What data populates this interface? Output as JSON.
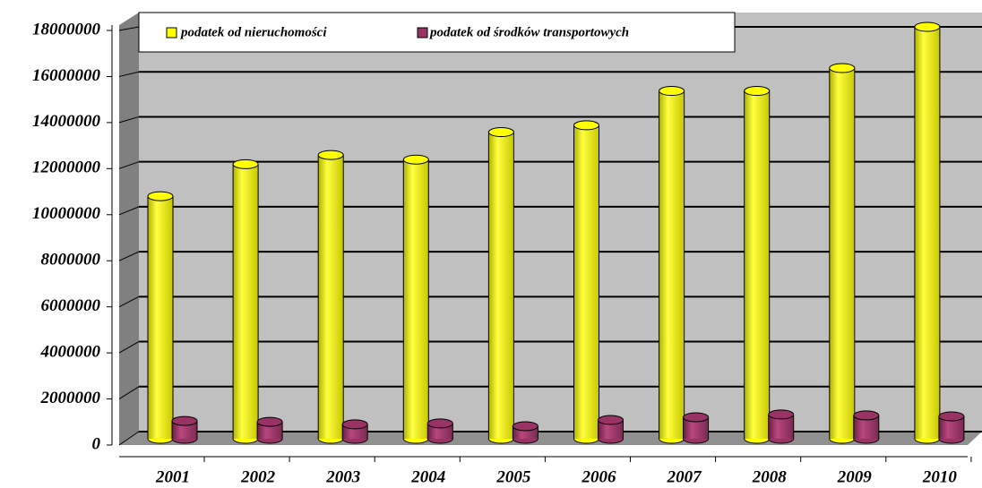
{
  "chart_data": {
    "type": "bar3d",
    "categories": [
      "2001",
      "2002",
      "2003",
      "2004",
      "2005",
      "2006",
      "2007",
      "2008",
      "2009",
      "2010"
    ],
    "series": [
      {
        "name": "podatek od nieruchomości",
        "color": "#ffff00",
        "values": [
          10600000,
          12000000,
          12400000,
          12200000,
          13400000,
          13700000,
          15200000,
          15200000,
          16200000,
          18000000
        ]
      },
      {
        "name": "podatek od środków transportowych",
        "color": "#993366",
        "values": [
          780000,
          740000,
          630000,
          670000,
          550000,
          820000,
          940000,
          1060000,
          1020000,
          980000
        ]
      }
    ],
    "ylim": [
      0,
      18000000
    ],
    "yticks": [
      0,
      2000000,
      4000000,
      6000000,
      8000000,
      10000000,
      12000000,
      14000000,
      16000000,
      18000000
    ],
    "grid": true,
    "legend": "top"
  }
}
